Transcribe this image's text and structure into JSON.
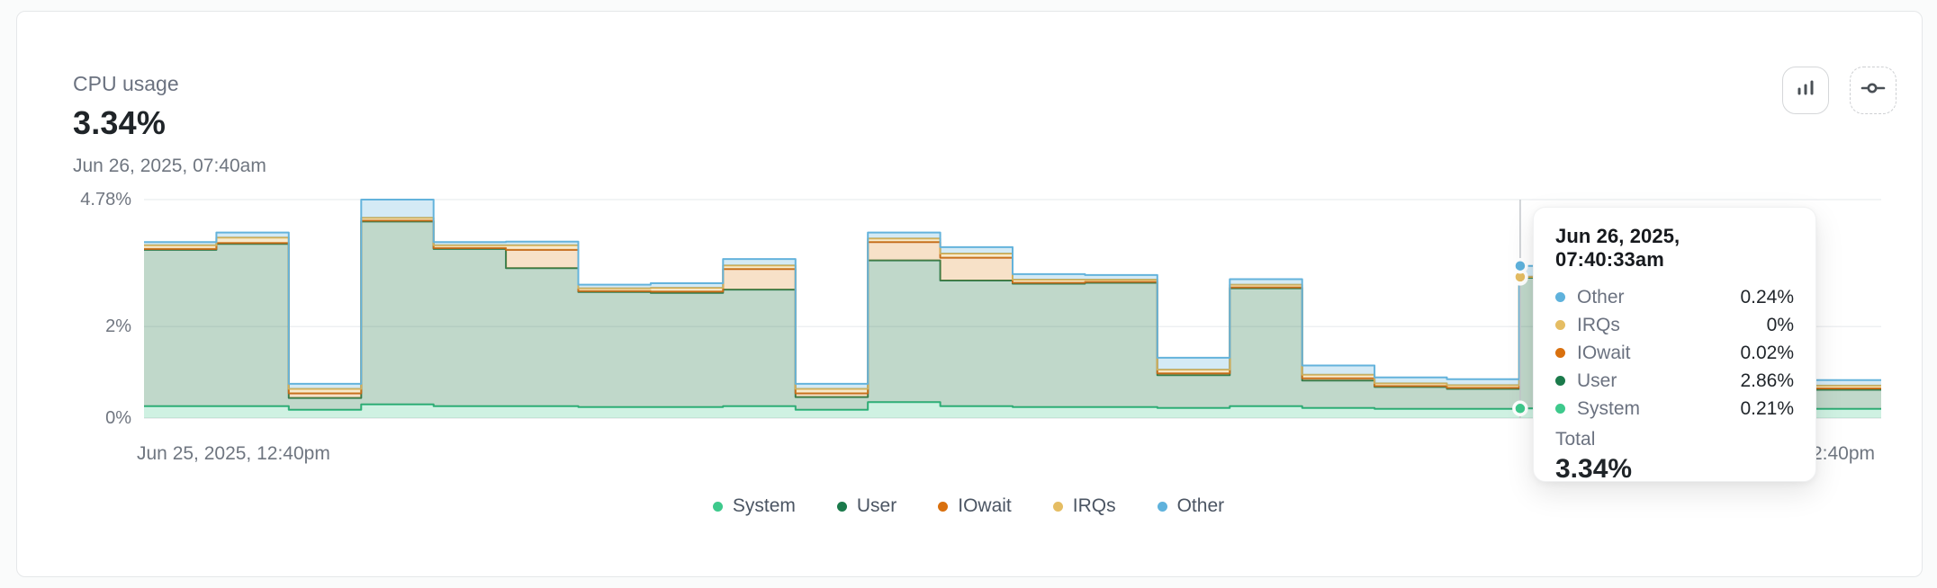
{
  "header": {
    "title": "CPU usage",
    "value": "3.34%",
    "timestamp": "Jun 26, 2025, 07:40am"
  },
  "toolbar": {
    "chart_type_icon": "bar-chart",
    "settings_icon": "slider-commit"
  },
  "chart_data": {
    "type": "area",
    "variant": "stacked-step-area",
    "unit": "%",
    "ylim": [
      0,
      4.78
    ],
    "grid": "horizontal",
    "y_ticks": [
      {
        "label": "4.78%",
        "value": 4.78
      },
      {
        "label": "2%",
        "value": 2
      },
      {
        "label": "0%",
        "value": 0
      }
    ],
    "x_axis": {
      "start_label": "Jun 25, 2025, 12:40pm",
      "end_label": "Jun 26, 2025, 12:40pm"
    },
    "series": [
      {
        "name": "System",
        "color": "#3ec98c",
        "line": "#2eb67d",
        "fill": "rgba(62,201,140,0.25)",
        "values": [
          0.26,
          0.26,
          0.18,
          0.3,
          0.26,
          0.26,
          0.24,
          0.24,
          0.26,
          0.18,
          0.35,
          0.26,
          0.24,
          0.24,
          0.22,
          0.26,
          0.22,
          0.2,
          0.2,
          0.21,
          0.22,
          0.22,
          0.3,
          0.2
        ]
      },
      {
        "name": "User",
        "color": "#1b7a4b",
        "line": "#2e7d4f",
        "fill": "rgba(46,125,79,0.30)",
        "values": [
          3.42,
          3.55,
          0.26,
          4.0,
          3.44,
          3.02,
          2.52,
          2.5,
          2.55,
          0.28,
          3.1,
          2.75,
          2.7,
          2.72,
          0.72,
          2.58,
          0.6,
          0.48,
          0.44,
          2.86,
          2.88,
          2.92,
          2.8,
          0.42
        ]
      },
      {
        "name": "IOwait",
        "color": "#d9700e",
        "line": "#c26414",
        "fill": "rgba(217,119,6,0.22)",
        "values": [
          0.02,
          0.02,
          0.1,
          0.02,
          0.02,
          0.4,
          0.02,
          0.03,
          0.45,
          0.08,
          0.4,
          0.5,
          0.02,
          0.02,
          0.04,
          0.02,
          0.05,
          0.02,
          0.02,
          0.02,
          0.02,
          0.02,
          0.1,
          0.03
        ]
      },
      {
        "name": "IRQs",
        "color": "#e5bd63",
        "line": "#dcaf4e",
        "fill": "rgba(230,185,90,0.30)",
        "values": [
          0.08,
          0.12,
          0.1,
          0.06,
          0.06,
          0.1,
          0.06,
          0.08,
          0.08,
          0.1,
          0.08,
          0.09,
          0.07,
          0.05,
          0.08,
          0.06,
          0.08,
          0.06,
          0.06,
          0.0,
          0.04,
          0.04,
          0.06,
          0.06
        ]
      },
      {
        "name": "Other",
        "color": "#5fb2dc",
        "line": "#64b3dc",
        "fill": "rgba(100,179,220,0.28)",
        "values": [
          0.07,
          0.11,
          0.11,
          0.4,
          0.07,
          0.08,
          0.08,
          0.1,
          0.14,
          0.11,
          0.13,
          0.14,
          0.12,
          0.1,
          0.26,
          0.12,
          0.2,
          0.13,
          0.13,
          0.24,
          0.22,
          0.22,
          0.2,
          0.12
        ]
      }
    ],
    "hover": {
      "index": 19,
      "crosshair": true
    }
  },
  "tooltip": {
    "title": "Jun 26, 2025, 07:40:33am",
    "rows": [
      {
        "label": "Other",
        "value": "0.24%",
        "color": "#5fb2dc"
      },
      {
        "label": "IRQs",
        "value": "0%",
        "color": "#e5bd63"
      },
      {
        "label": "IOwait",
        "value": "0.02%",
        "color": "#d9700e"
      },
      {
        "label": "User",
        "value": "2.86%",
        "color": "#1b7a4b"
      },
      {
        "label": "System",
        "value": "0.21%",
        "color": "#3ec98c"
      }
    ],
    "total_label": "Total",
    "total_value": "3.34%"
  },
  "legend": {
    "items": [
      {
        "label": "System",
        "color": "#3ec98c"
      },
      {
        "label": "User",
        "color": "#1b7a4b"
      },
      {
        "label": "IOwait",
        "color": "#d9700e"
      },
      {
        "label": "IRQs",
        "color": "#e5bd63"
      },
      {
        "label": "Other",
        "color": "#5fb2dc"
      }
    ]
  }
}
